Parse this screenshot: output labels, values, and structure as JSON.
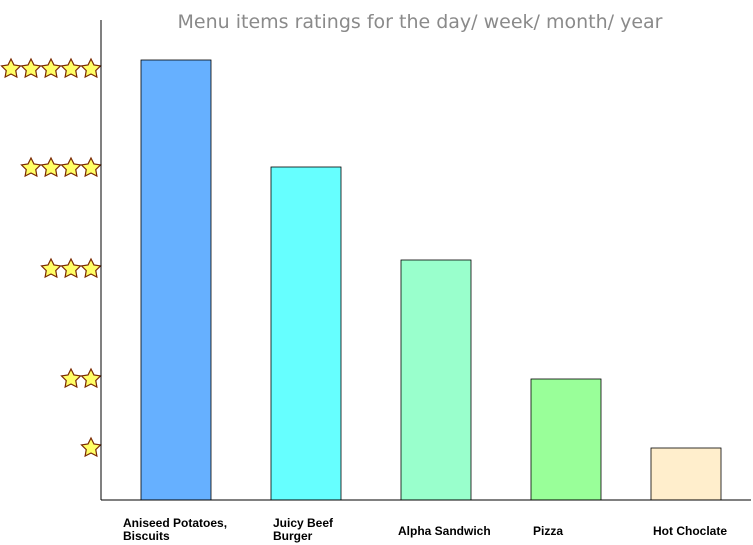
{
  "chart_data": {
    "type": "bar",
    "title": "Menu items ratings for the day/ week/ month/ year",
    "categories": [
      [
        "Aniseed Potatoes,",
        "Biscuits"
      ],
      [
        "Juicy Beef",
        "Burger"
      ],
      [
        "Alpha Sandwich"
      ],
      [
        "Pizza"
      ],
      [
        "Hot Choclate"
      ]
    ],
    "values": [
      5,
      4,
      3,
      2,
      1
    ],
    "colors": [
      "#66b0ff",
      "#66ffff",
      "#99ffcc",
      "#99ff99",
      "#ffeecc"
    ],
    "y_ticks": [
      1,
      2,
      3,
      4,
      5
    ],
    "y_tick_icon": "star-icon",
    "ylim": [
      0,
      5
    ],
    "grid": false,
    "legend": "none"
  }
}
